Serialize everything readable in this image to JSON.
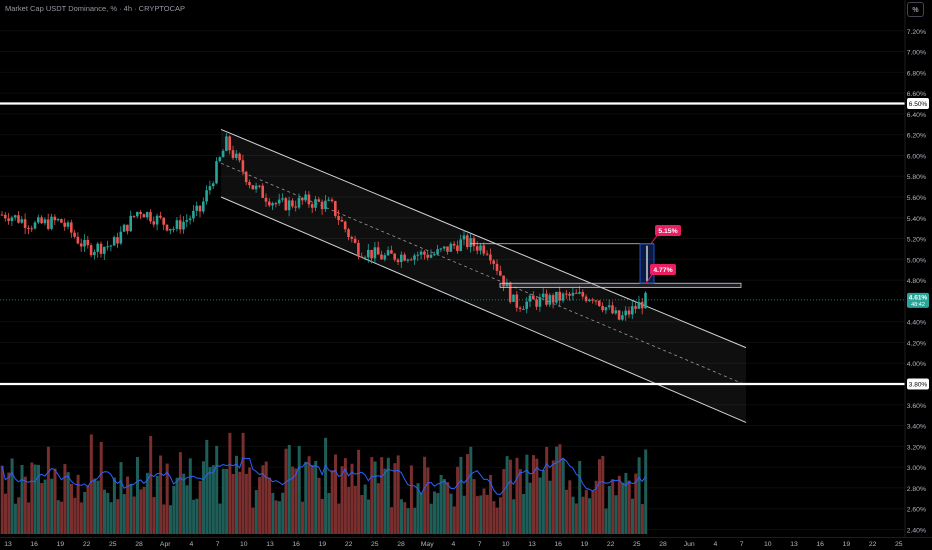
{
  "header": {
    "title": "Market Cap USDT Dominance, % · 4h · CRYPTOCAP",
    "scale_button": "%"
  },
  "chart_data": {
    "type": "candlestick",
    "symbol": "CRYPTOCAP:USDT.D",
    "interval": "4h",
    "unit": "%",
    "ylim": [
      2.3,
      7.4
    ],
    "y_ticks": [
      "7.20%",
      "7.00%",
      "6.80%",
      "6.60%",
      "6.40%",
      "6.20%",
      "6.00%",
      "5.80%",
      "5.60%",
      "5.40%",
      "5.20%",
      "5.00%",
      "4.80%",
      "4.40%",
      "4.20%",
      "4.00%",
      "3.60%",
      "3.40%",
      "3.20%",
      "3.00%",
      "2.80%",
      "2.60%",
      "2.40%"
    ],
    "x_ticks": [
      "13",
      "16",
      "19",
      "22",
      "25",
      "28",
      "Apr",
      "4",
      "7",
      "10",
      "13",
      "16",
      "19",
      "22",
      "25",
      "28",
      "May",
      "4",
      "7",
      "10",
      "13",
      "16",
      "19",
      "22",
      "25",
      "28",
      "Jun",
      "4",
      "7",
      "10",
      "13",
      "16",
      "19",
      "22",
      "25"
    ],
    "last_price": {
      "value": "4.61%",
      "countdown": "48:42"
    },
    "horizontal_levels": [
      {
        "label": "6.50%",
        "color": "#ffffff"
      },
      {
        "label": "3.80%",
        "color": "#ffffff"
      }
    ],
    "channel": {
      "type": "descending parallel channel",
      "upper_end": 4.15,
      "lower_end": 3.43,
      "mid_end": 3.79
    },
    "resistance_box": {
      "from": 4.73,
      "to": 4.77
    },
    "price_labels": [
      {
        "text": "5.15%",
        "color": "#e91e63"
      },
      {
        "text": "4.77%",
        "color": "#e91e63"
      }
    ],
    "price_path": [
      [
        "Mar 13",
        5.43
      ],
      [
        "Mar 16",
        5.33
      ],
      [
        "Mar 19",
        5.37
      ],
      [
        "Mar 22",
        5.1
      ],
      [
        "Mar 25",
        5.14
      ],
      [
        "Mar 28",
        5.48
      ],
      [
        "Apr 1",
        5.3
      ],
      [
        "Apr 4",
        5.47
      ],
      [
        "Apr 7",
        6.12
      ],
      [
        "Apr 10",
        5.7
      ],
      [
        "Apr 13",
        5.52
      ],
      [
        "Apr 16",
        5.56
      ],
      [
        "Apr 19",
        5.52
      ],
      [
        "Apr 22",
        5.1
      ],
      [
        "Apr 25",
        5.02
      ],
      [
        "Apr 28",
        5.05
      ],
      [
        "May 1",
        5.05
      ],
      [
        "May 4",
        5.17
      ],
      [
        "May 7",
        5.1
      ],
      [
        "May 10",
        4.57
      ],
      [
        "May 13",
        4.6
      ],
      [
        "May 16",
        4.64
      ],
      [
        "May 19",
        4.65
      ],
      [
        "May 22",
        4.42
      ],
      [
        "May 25",
        4.61
      ]
    ],
    "volume_series": {
      "name": "",
      "colors": {
        "up": "#26a69a",
        "down": "#ef5350"
      }
    }
  }
}
